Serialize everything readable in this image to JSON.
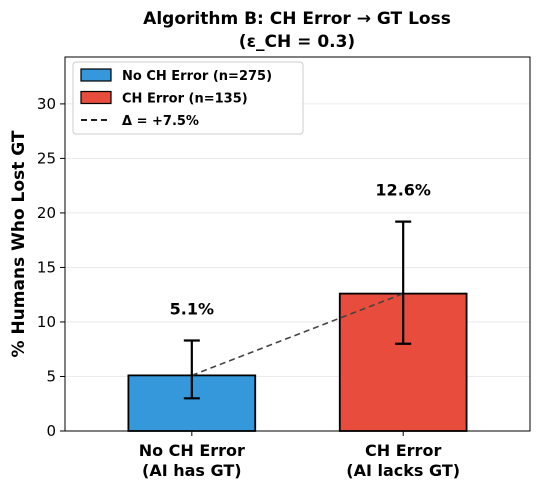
{
  "chart_data": {
    "type": "bar",
    "title": "Algorithm B: CH Error → GT Loss",
    "subtitle": "(ε_CH = 0.3)",
    "xlabel": "",
    "ylabel": "% Humans Who Lost GT",
    "ylim": [
      0,
      34.3
    ],
    "yticks": [
      0,
      5,
      10,
      15,
      20,
      25,
      30
    ],
    "ytick_labels": [
      "0",
      "5",
      "10",
      "15",
      "20",
      "25",
      "30"
    ],
    "grid": "y",
    "categories": [
      {
        "line1": "No CH Error",
        "line2": "(AI has GT)"
      },
      {
        "line1": "CH Error",
        "line2": "(AI lacks GT)"
      }
    ],
    "values": [
      5.1,
      12.6
    ],
    "value_labels": [
      "5.1%",
      "12.6%"
    ],
    "error_bars": [
      {
        "low": 3.0,
        "high": 8.3
      },
      {
        "low": 8.0,
        "high": 19.2
      }
    ],
    "colors": [
      "#3498db",
      "#e74c3c"
    ],
    "dashed_line": {
      "from": 5.1,
      "to": 12.6,
      "color": "#444444"
    },
    "legend": {
      "position": "top-left",
      "entries": [
        {
          "label": "No CH Error (n=275)",
          "kind": "patch",
          "color": "#3498db"
        },
        {
          "label": "CH Error (n=135)",
          "kind": "patch",
          "color": "#e74c3c"
        },
        {
          "label": "Δ = +7.5%",
          "kind": "dashed-line",
          "color": "#000000"
        }
      ]
    }
  }
}
